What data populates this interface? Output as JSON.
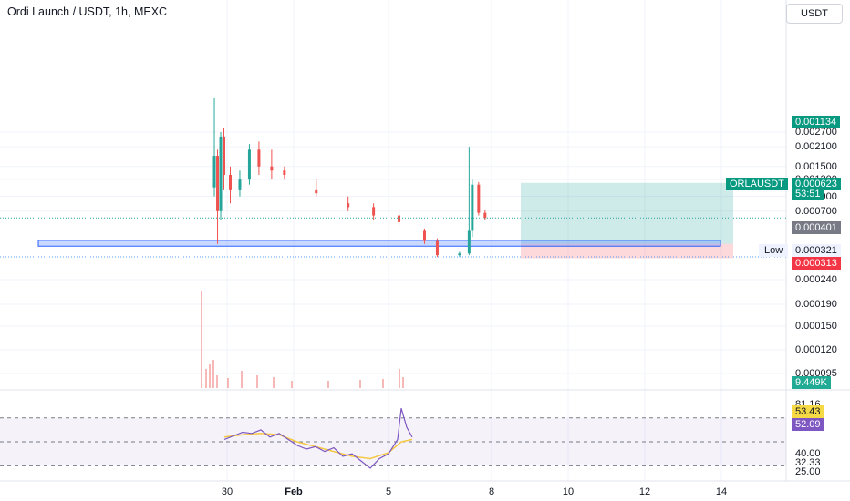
{
  "header": {
    "title": "Ordi Launch / USDT, 1h, MEXC",
    "currency_button": "USDT"
  },
  "price_axis": {
    "ticks": [
      "0.002700",
      "0.002100",
      "0.001500",
      "0.001200",
      "0.000900",
      "0.000700",
      "0.000240",
      "0.000190",
      "0.000150",
      "0.000120",
      "0.000095"
    ]
  },
  "price_badges": {
    "take_profit": "0.001134",
    "symbol": "ORLAUSDT",
    "last_price": "0.000623",
    "countdown": "53:51",
    "entry": "0.000401",
    "low_label": "Low",
    "low_value": "0.000321",
    "stop_loss": "0.000313",
    "volume": "9.449K"
  },
  "rsi_axis": {
    "ticks": [
      "81.16",
      "40.00",
      "32.33",
      "25.00"
    ],
    "rsi_value": "53.43",
    "ma_value": "52.09"
  },
  "time_axis": {
    "ticks": [
      {
        "label": "30",
        "bold": false
      },
      {
        "label": "Feb",
        "bold": true
      },
      {
        "label": "5",
        "bold": false
      },
      {
        "label": "8",
        "bold": false
      },
      {
        "label": "10",
        "bold": false
      },
      {
        "label": "12",
        "bold": false
      },
      {
        "label": "14",
        "bold": false
      }
    ]
  },
  "colors": {
    "up": "#26a69a",
    "down": "#ef5350",
    "take_profit_zone": "#26a69a",
    "stop_zone": "#f7525f",
    "support_box": "#2962ff",
    "rsi_line": "#7e57c2",
    "rsi_ma": "#f5c945",
    "rsi_band": "#7e57c2"
  },
  "chart_data": {
    "type": "candlestick",
    "symbol": "Ordi Launch / USDT",
    "interval": "1h",
    "exchange": "MEXC",
    "y_scale": "log",
    "last_price": 0.000623,
    "day_low": 0.000321,
    "position_tool": {
      "type": "long",
      "entry": 0.000401,
      "target": 0.001134,
      "stop": 0.000313
    },
    "support_zone": [
      0.000385,
      0.000425
    ],
    "candles": [
      {
        "x": "Jan 29 16:00",
        "o": 0.00105,
        "h": 0.0048,
        "l": 0.0009,
        "c": 0.0018
      },
      {
        "x": "Jan 29 18:00",
        "o": 0.0018,
        "h": 0.002,
        "l": 0.0004,
        "c": 0.0007
      },
      {
        "x": "Jan 29 20:00",
        "o": 0.0007,
        "h": 0.0027,
        "l": 0.0006,
        "c": 0.0025
      },
      {
        "x": "Jan 29 22:00",
        "o": 0.0025,
        "h": 0.0029,
        "l": 0.001,
        "c": 0.0013
      },
      {
        "x": "Jan 30 02:00",
        "o": 0.0013,
        "h": 0.0015,
        "l": 0.0008,
        "c": 0.001
      },
      {
        "x": "Jan 30 08:00",
        "o": 0.001,
        "h": 0.0014,
        "l": 0.0009,
        "c": 0.0012
      },
      {
        "x": "Jan 30 14:00",
        "o": 0.0012,
        "h": 0.0022,
        "l": 0.0011,
        "c": 0.002
      },
      {
        "x": "Jan 30 20:00",
        "o": 0.002,
        "h": 0.0023,
        "l": 0.0013,
        "c": 0.0015
      },
      {
        "x": "Jan 31 04:00",
        "o": 0.0015,
        "h": 0.002,
        "l": 0.0012,
        "c": 0.0014
      },
      {
        "x": "Jan 31 12:00",
        "o": 0.0014,
        "h": 0.0015,
        "l": 0.0012,
        "c": 0.0013
      },
      {
        "x": "Feb 1 08:00",
        "o": 0.001,
        "h": 0.0012,
        "l": 0.0009,
        "c": 0.00095
      },
      {
        "x": "Feb 2 04:00",
        "o": 0.0008,
        "h": 0.0009,
        "l": 0.0007,
        "c": 0.00075
      },
      {
        "x": "Feb 2 20:00",
        "o": 0.00075,
        "h": 0.0008,
        "l": 0.0006,
        "c": 0.00065
      },
      {
        "x": "Feb 3 12:00",
        "o": 0.00065,
        "h": 0.0007,
        "l": 0.00055,
        "c": 0.00058
      },
      {
        "x": "Feb 4 04:00",
        "o": 0.0005,
        "h": 0.00052,
        "l": 0.0004,
        "c": 0.00042
      },
      {
        "x": "Feb 4 12:00",
        "o": 0.00042,
        "h": 0.00044,
        "l": 0.00032,
        "c": 0.00033
      },
      {
        "x": "Feb 5 02:00",
        "o": 0.00033,
        "h": 0.00035,
        "l": 0.00032,
        "c": 0.00034
      },
      {
        "x": "Feb 5 08:00",
        "o": 0.00034,
        "h": 0.0021,
        "l": 0.00033,
        "c": 0.0005
      },
      {
        "x": "Feb 5 10:00",
        "o": 0.0005,
        "h": 0.0012,
        "l": 0.00045,
        "c": 0.0011
      },
      {
        "x": "Feb 5 14:00",
        "o": 0.0011,
        "h": 0.00115,
        "l": 0.00065,
        "c": 0.00068
      },
      {
        "x": "Feb 5 18:00",
        "o": 0.00068,
        "h": 0.00072,
        "l": 0.0006,
        "c": 0.000623
      }
    ],
    "rsi": {
      "length": 14,
      "value": 53.43,
      "ma": 52.09,
      "bands": [
        70,
        50,
        30
      ],
      "max": 81.16,
      "min": 25.0
    }
  }
}
